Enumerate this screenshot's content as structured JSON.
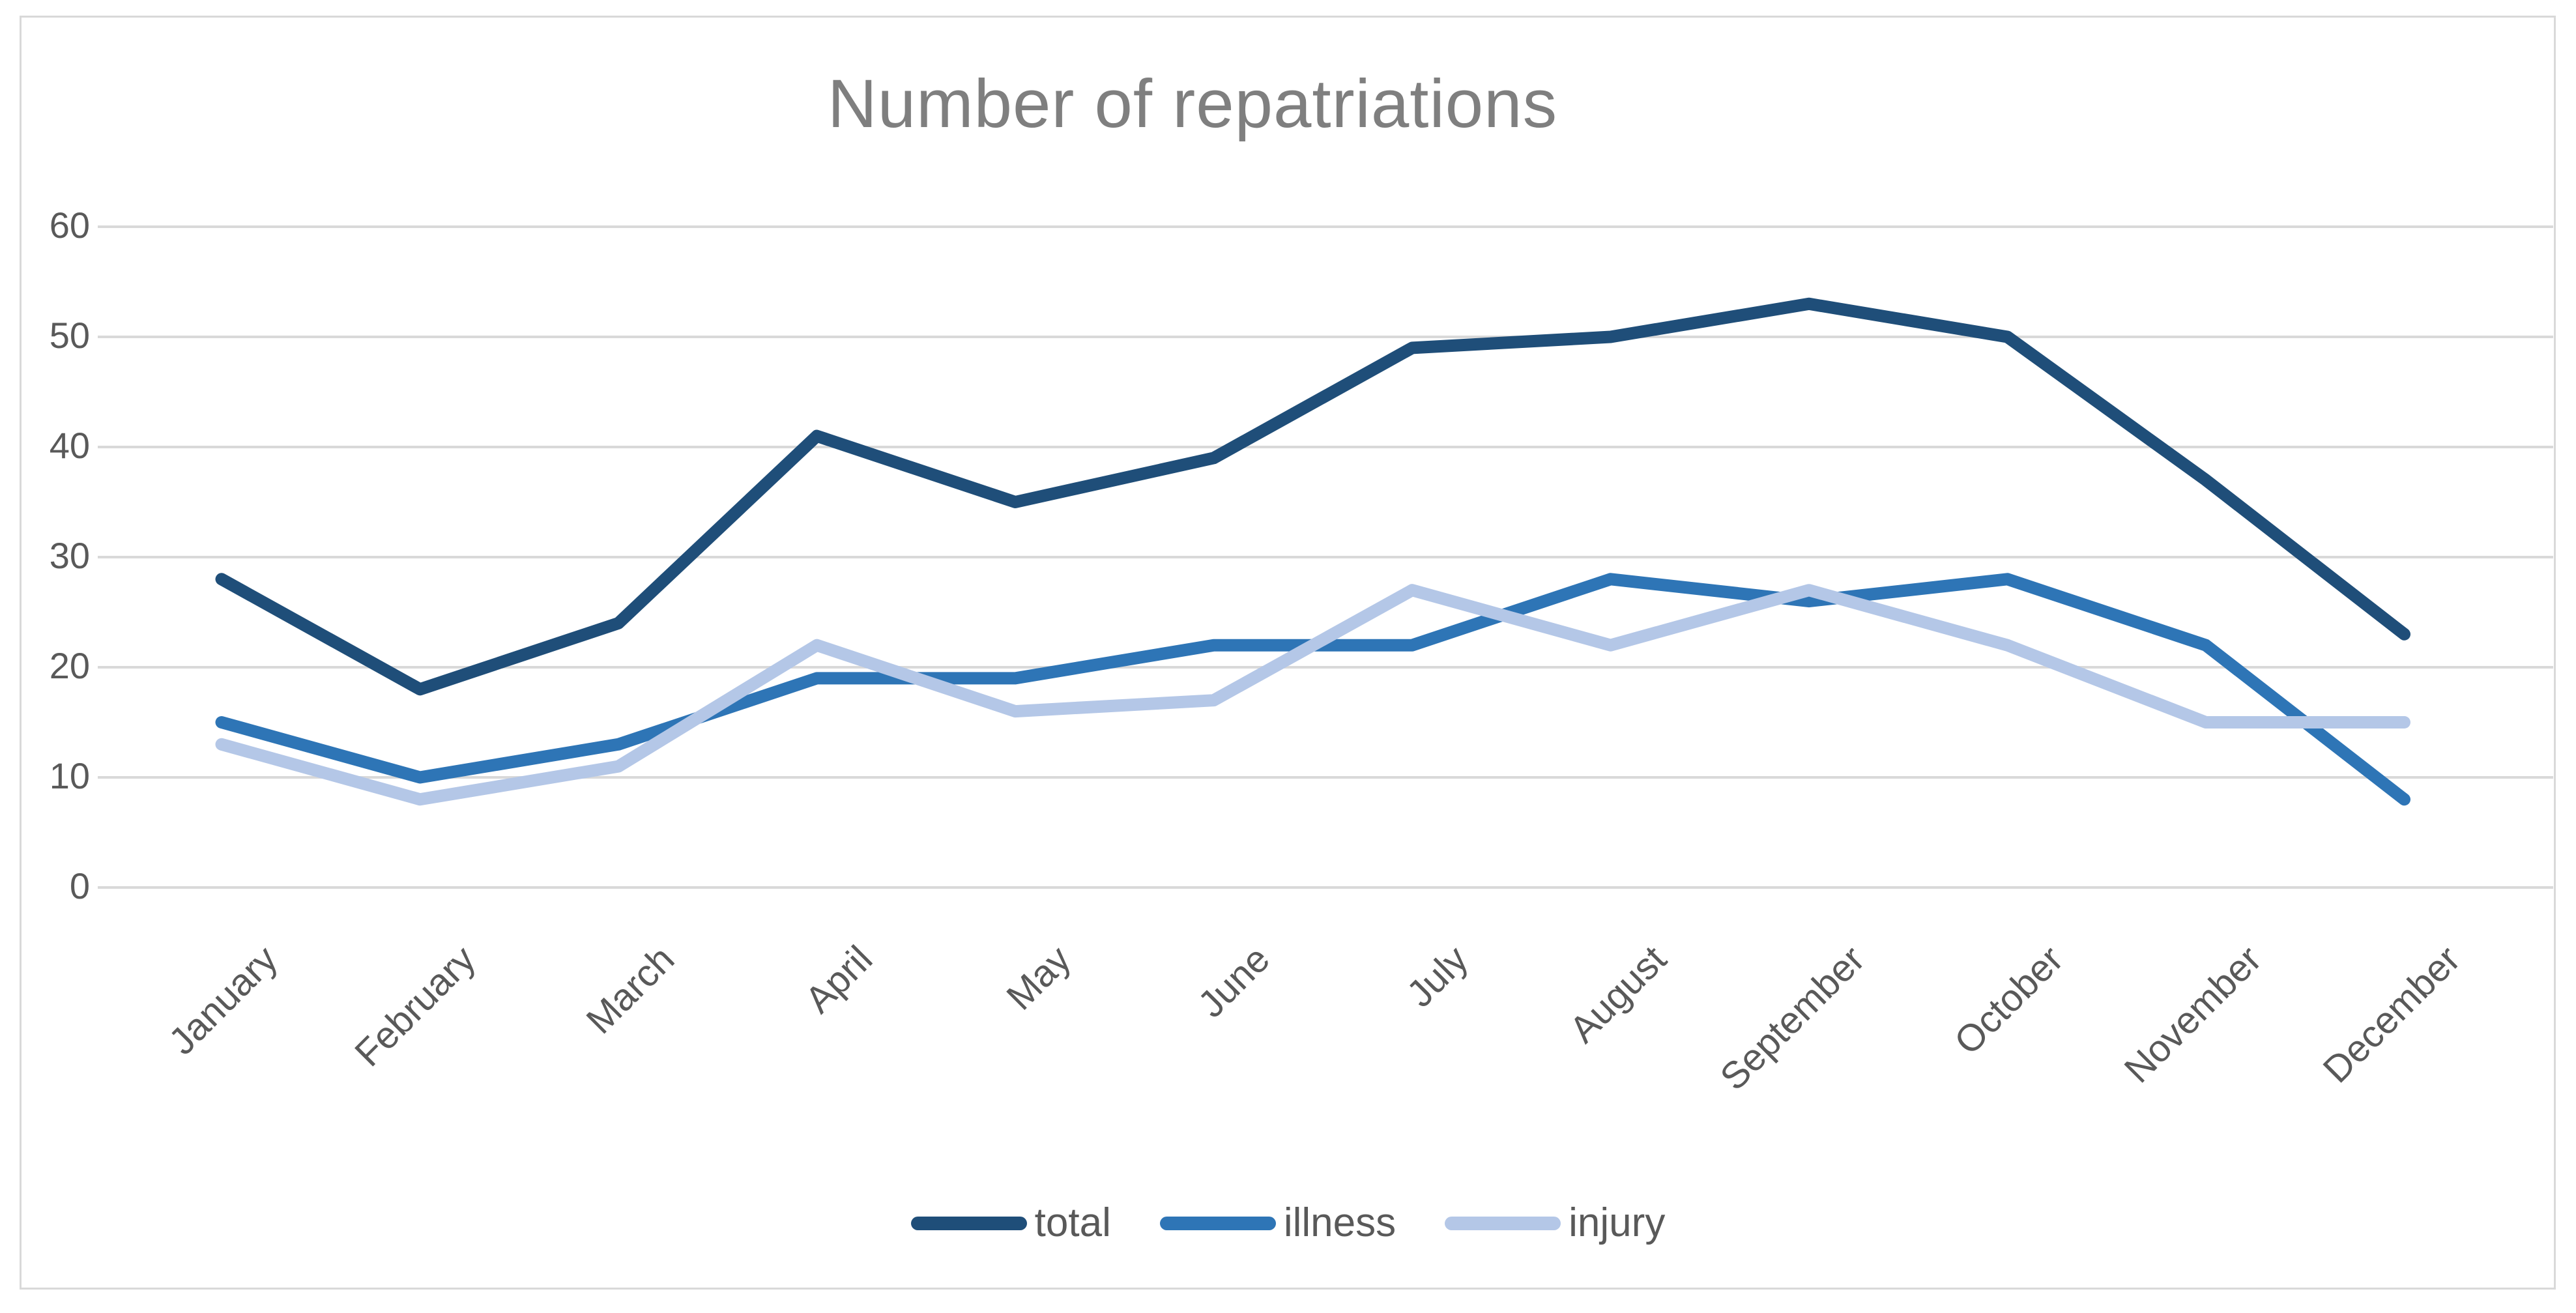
{
  "chart_data": {
    "type": "line",
    "title": "Number of repatriations",
    "categories": [
      "January",
      "February",
      "March",
      "April",
      "May",
      "June",
      "July",
      "August",
      "September",
      "October",
      "November",
      "December"
    ],
    "series": [
      {
        "name": "total",
        "color": "#1F4E79",
        "values": [
          28,
          18,
          24,
          41,
          35,
          39,
          49,
          50,
          53,
          50,
          37,
          23
        ]
      },
      {
        "name": "illness",
        "color": "#2E75B6",
        "values": [
          15,
          10,
          13,
          19,
          19,
          22,
          22,
          28,
          26,
          28,
          22,
          8
        ]
      },
      {
        "name": "injury",
        "color": "#B4C7E7",
        "values": [
          13,
          8,
          11,
          22,
          16,
          17,
          27,
          22,
          27,
          22,
          15,
          15
        ]
      }
    ],
    "xlabel": "",
    "ylabel": "",
    "ylim": [
      0,
      60
    ],
    "yticks": [
      0,
      10,
      20,
      30,
      40,
      50,
      60
    ],
    "grid": true,
    "legend_position": "bottom",
    "title_color": "#7F7F7F",
    "axis_label_color": "#595959",
    "gridline_color": "#D9D9D9",
    "border_color": "#D9D9D9",
    "background_color": "#FFFFFF"
  }
}
